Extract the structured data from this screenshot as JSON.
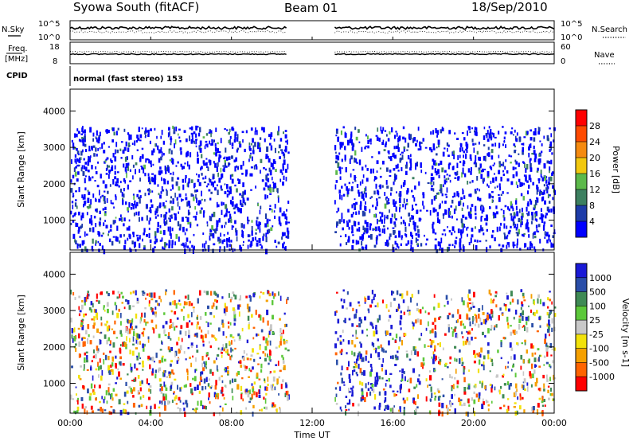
{
  "header": {
    "station": "Syowa South (fitACF)",
    "beam": "Beam 01",
    "date": "18/Sep/2010"
  },
  "top_panel": {
    "left_label": "N.Sky",
    "right_label": "N.Search",
    "left_ticks": [
      "10^5",
      "10^0"
    ],
    "right_ticks": [
      "10^5",
      "10^0"
    ]
  },
  "freq_panel": {
    "left_label_1": "Freq.",
    "left_label_2": "[MHz]",
    "right_label": "Nave",
    "left_ticks": [
      "18",
      "8"
    ],
    "right_ticks": [
      "60",
      "0"
    ]
  },
  "cpid_panel": {
    "label": "CPID",
    "text": "normal (fast stereo) 153"
  },
  "chart_data": [
    {
      "type": "heatmap",
      "quantity": "power",
      "ylabel": "Slant Range [km]",
      "ylim": [
        180,
        4600
      ],
      "yticks": [
        1000,
        2000,
        3000,
        4000
      ],
      "xlabel": "",
      "xlim_hours": [
        0,
        24
      ],
      "colorbar_label": "Power [dB]",
      "colorbar_ticks": [
        "4",
        "8",
        "12",
        "16",
        "20",
        "24",
        "28"
      ],
      "colors": [
        "#0000ff",
        "#1e3ca8",
        "#3d8060",
        "#5cb94a",
        "#f2c80f",
        "#f58a10",
        "#ff4a00",
        "#ff0000"
      ]
    },
    {
      "type": "heatmap",
      "quantity": "velocity",
      "ylabel": "Slant Range [km]",
      "ylim": [
        180,
        4600
      ],
      "yticks": [
        1000,
        2000,
        3000,
        4000
      ],
      "xlabel": "Time UT",
      "xticks": [
        "00:00",
        "04:00",
        "08:00",
        "12:00",
        "16:00",
        "20:00",
        "00:00"
      ],
      "xlim_hours": [
        0,
        24
      ],
      "colorbar_label": "Velocity [m s-1]",
      "colorbar_ticks": [
        "1000",
        "500",
        "100",
        "25",
        "-25",
        "-100",
        "-500",
        "-1000"
      ],
      "colors": [
        "#1a1ad6",
        "#2a4ea8",
        "#3f8a55",
        "#5cc83a",
        "#c8c8c8",
        "#f2e20a",
        "#f5a000",
        "#ff6400",
        "#ff0000"
      ],
      "data_gap_hours": [
        10.8,
        13.1
      ]
    }
  ]
}
